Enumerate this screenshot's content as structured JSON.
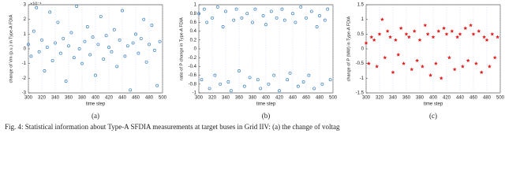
{
  "chart_data": [
    {
      "type": "scatter",
      "marker": "o",
      "color": "#3a7fc1",
      "xlabel": "time step",
      "ylabel": "change of Vm (p.u.) in Type-A FDIA",
      "y_multiplier_label": "×10⁻⁴",
      "subcaption": "(a)",
      "xlim": [
        300,
        500
      ],
      "xticks": [
        300,
        320,
        340,
        360,
        380,
        400,
        420,
        440,
        460,
        480,
        500
      ],
      "ylim": [
        -3,
        3
      ],
      "yticks": [
        -3,
        -2,
        -1,
        0,
        1,
        2,
        3
      ],
      "x": [
        300,
        304,
        308,
        312,
        316,
        320,
        324,
        328,
        332,
        336,
        340,
        344,
        348,
        352,
        356,
        360,
        364,
        368,
        372,
        376,
        380,
        384,
        388,
        392,
        396,
        400,
        404,
        408,
        412,
        416,
        420,
        424,
        428,
        432,
        436,
        440,
        444,
        448,
        452,
        456,
        460,
        464,
        468,
        472,
        476,
        480,
        484,
        488,
        492,
        496
      ],
      "values": [
        0.3,
        -0.5,
        1.2,
        2.8,
        -0.2,
        0.6,
        -1.5,
        0.1,
        2.5,
        -0.8,
        0.4,
        1.8,
        -0.3,
        0.7,
        -2.2,
        0.2,
        1.1,
        -0.6,
        2.9,
        0.0,
        -1.0,
        0.5,
        1.5,
        -0.4,
        0.8,
        -1.8,
        0.3,
        2.2,
        -0.7,
        0.9,
        0.1,
        -0.2,
        1.3,
        -1.2,
        0.6,
        2.6,
        -0.5,
        0.2,
        -2.8,
        0.4,
        1.0,
        -0.3,
        0.7,
        2.0,
        -0.9,
        0.3,
        1.6,
        -0.1,
        -2.5,
        0.5
      ]
    },
    {
      "type": "scatter",
      "marker": "o",
      "color": "#3a7fc1",
      "xlabel": "time step",
      "ylabel": "ratio of P change in Type-A FDIA",
      "subcaption": "(b)",
      "xlim": [
        300,
        500
      ],
      "xticks": [
        300,
        320,
        340,
        360,
        380,
        400,
        420,
        440,
        460,
        480,
        500
      ],
      "ylim": [
        -1,
        1
      ],
      "yticks": [
        -1,
        -0.8,
        -0.6,
        -0.4,
        -0.2,
        0,
        0.2,
        0.4,
        0.6,
        0.8,
        1
      ],
      "x": [
        300,
        304,
        308,
        312,
        316,
        320,
        324,
        328,
        332,
        336,
        340,
        344,
        348,
        352,
        356,
        360,
        364,
        368,
        372,
        376,
        380,
        384,
        388,
        392,
        396,
        400,
        404,
        408,
        412,
        416,
        420,
        424,
        428,
        432,
        436,
        440,
        444,
        448,
        452,
        456,
        460,
        464,
        468,
        472,
        476,
        480,
        484,
        488,
        492,
        496
      ],
      "values": [
        0.8,
        -0.7,
        0.9,
        0.6,
        -0.9,
        0.7,
        -0.6,
        0.95,
        -0.8,
        0.5,
        0.85,
        -0.75,
        -0.95,
        0.65,
        0.9,
        -0.5,
        0.7,
        -0.85,
        0.8,
        -0.65,
        0.6,
        0.9,
        -0.7,
        -0.9,
        0.75,
        0.55,
        -0.8,
        0.85,
        -0.6,
        0.7,
        -0.95,
        0.9,
        0.65,
        -0.7,
        -0.55,
        0.8,
        0.6,
        -0.85,
        0.95,
        -0.75,
        0.7,
        -0.6,
        0.85,
        -0.9,
        0.5,
        0.75,
        -0.8,
        0.65,
        0.9,
        -0.7
      ]
    },
    {
      "type": "scatter",
      "marker": "*",
      "color": "#e02020",
      "xlabel": "time step",
      "ylabel": "change of P (MW) in Type-A FDIA",
      "subcaption": "(c)",
      "xlim": [
        300,
        500
      ],
      "xticks": [
        300,
        320,
        340,
        360,
        380,
        400,
        420,
        440,
        460,
        480,
        500
      ],
      "ylim": [
        -1.5,
        1.5
      ],
      "yticks": [
        -1.5,
        -1,
        -0.5,
        0,
        0.5,
        1,
        1.5
      ],
      "x": [
        300,
        304,
        308,
        312,
        316,
        320,
        324,
        328,
        332,
        336,
        340,
        344,
        348,
        352,
        356,
        360,
        364,
        368,
        372,
        376,
        380,
        384,
        388,
        392,
        396,
        400,
        404,
        408,
        412,
        416,
        420,
        424,
        428,
        432,
        436,
        440,
        444,
        448,
        452,
        456,
        460,
        464,
        468,
        472,
        476,
        480,
        484,
        488,
        492,
        496
      ],
      "values": [
        0.2,
        -0.5,
        0.4,
        0.3,
        -0.6,
        0.5,
        1.0,
        -0.3,
        0.6,
        0.4,
        -0.8,
        0.3,
        -0.2,
        0.7,
        -0.5,
        0.5,
        0.4,
        -0.7,
        0.6,
        -0.4,
        0.3,
        -0.6,
        0.8,
        0.5,
        -0.9,
        0.4,
        -0.5,
        0.6,
        -1.0,
        0.7,
        0.5,
        -0.3,
        0.6,
        -0.7,
        0.4,
        0.5,
        -0.6,
        0.7,
        -0.4,
        0.8,
        0.5,
        -0.5,
        0.6,
        -0.8,
        0.4,
        0.3,
        -0.6,
        0.5,
        -0.3,
        0.4
      ]
    }
  ],
  "caption": "Fig. 4: Statistical information about Type-A SFDIA measurements at target buses in Grid IIV: (a) the change of voltag"
}
